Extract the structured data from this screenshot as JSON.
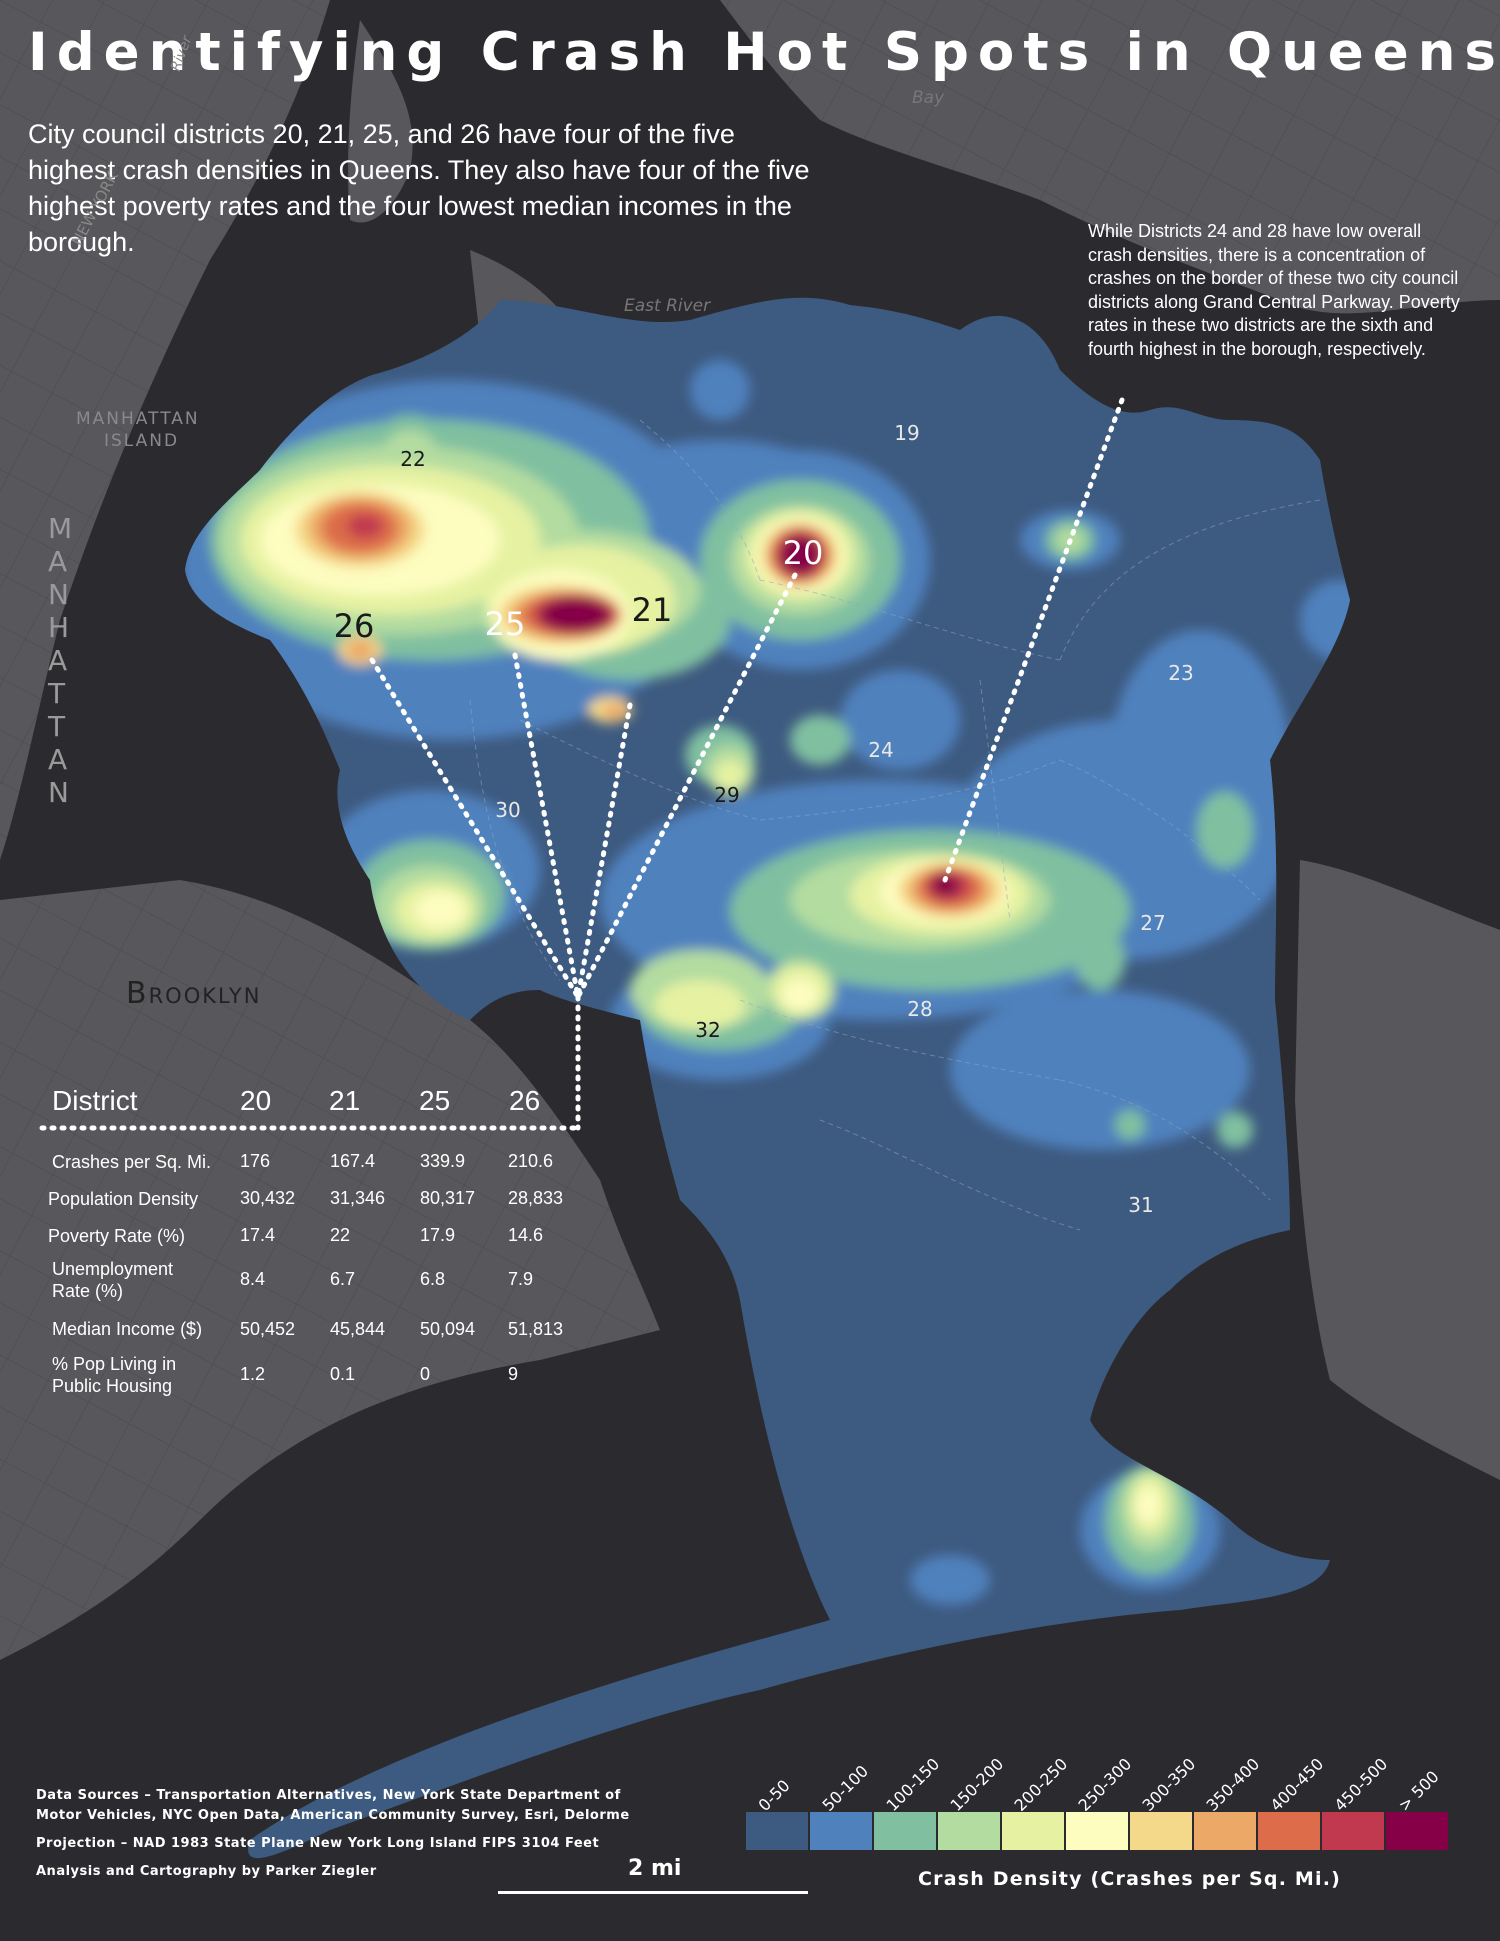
{
  "title": "Identifying Crash Hot Spots in Queens",
  "subtitle": "City council districts 20, 21, 25, and 26 have four of the five highest crash densities in Queens. They also have four of the five highest poverty rates and the four lowest median incomes in the borough.",
  "annotation": "While Districts 24 and 28 have low overall crash densities, there is a concentration of crashes on the border of these two city council districts along Grand Central Parkway. Poverty rates in these two districts are the sixth and fourth highest in the borough, respectively.",
  "district_labels": [
    "22",
    "26",
    "25",
    "21",
    "20",
    "19",
    "23",
    "24",
    "29",
    "30",
    "27",
    "28",
    "32",
    "31"
  ],
  "place_labels": {
    "manhattan_island": [
      "MANHATTAN",
      "ISLAND"
    ],
    "manhattan": "MANHATTAN",
    "brooklyn": "Brooklyn",
    "east_river": "East River",
    "bay": "Bay",
    "new_york": "NEW YORK",
    "river": "River"
  },
  "stats_table": {
    "header": [
      "District",
      "20",
      "21",
      "25",
      "26"
    ],
    "rows": [
      {
        "label": "Crashes per Sq. Mi.",
        "values": [
          "176",
          "167.4",
          "339.9",
          "210.6"
        ]
      },
      {
        "label": "Population Density",
        "values": [
          "30,432",
          "31,346",
          "80,317",
          "28,833"
        ]
      },
      {
        "label": "Poverty Rate (%)",
        "values": [
          "17.4",
          "22",
          "17.9",
          "14.6"
        ]
      },
      {
        "label": "Unemployment Rate (%)",
        "values": [
          "8.4",
          "6.7",
          "6.8",
          "7.9"
        ]
      },
      {
        "label": "Median Income ($)",
        "values": [
          "50,452",
          "45,844",
          "50,094",
          "51,813"
        ]
      },
      {
        "label": "% Pop Living in Public Housing",
        "values": [
          "1.2",
          "0.1",
          "0",
          "9"
        ]
      }
    ]
  },
  "sources": {
    "data": "Data Sources – Transportation Alternatives, New York State Department of",
    "data2": "Motor Vehicles, NYC Open Data, American Community Survey, Esri, Delorme",
    "projection": "Projection – NAD 1983 State Plane New York Long Island FIPS 3104 Feet",
    "credit": "Analysis and Cartography by Parker Ziegler"
  },
  "scale": "2 mi",
  "legend": {
    "title": "Crash Density (Crashes per Sq. Mi.)",
    "bins": [
      "0-50",
      "50-100",
      "100-150",
      "150-200",
      "200-250",
      "250-300",
      "300-350",
      "350-400",
      "400-450",
      "450-500",
      "> 500"
    ],
    "colors": [
      "#3d5a80",
      "#4f81bd",
      "#80c0a0",
      "#b3dca0",
      "#e6f2a2",
      "#fdfdc0",
      "#f5d98a",
      "#eca866",
      "#dc6c4a",
      "#c0394f",
      "#850046"
    ]
  }
}
